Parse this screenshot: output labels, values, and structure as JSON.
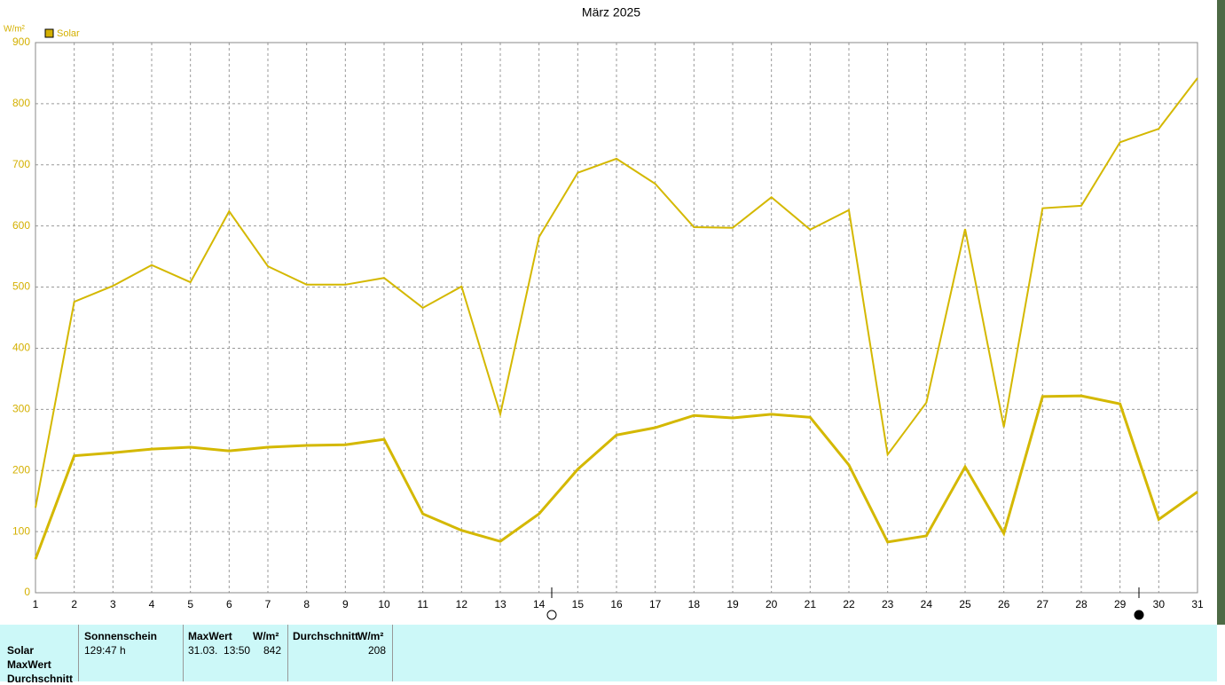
{
  "chart_data": {
    "type": "line",
    "title": "März 2025",
    "y_unit": "W/m²",
    "legend": "Solar",
    "legend_color": "#d4b000",
    "x": [
      1,
      2,
      3,
      4,
      5,
      6,
      7,
      8,
      9,
      10,
      11,
      12,
      13,
      14,
      15,
      16,
      17,
      18,
      19,
      20,
      21,
      22,
      23,
      24,
      25,
      26,
      27,
      28,
      29,
      30,
      31
    ],
    "xlim": [
      1,
      31
    ],
    "xticks": [
      1,
      2,
      3,
      4,
      5,
      6,
      7,
      8,
      9,
      10,
      11,
      12,
      13,
      14,
      15,
      16,
      17,
      18,
      19,
      20,
      21,
      22,
      23,
      24,
      25,
      26,
      27,
      28,
      29,
      30,
      31
    ],
    "ylim": [
      0,
      900
    ],
    "yticks": [
      0,
      100,
      200,
      300,
      400,
      500,
      600,
      700,
      800,
      900
    ],
    "grid": true,
    "series": [
      {
        "color": "#d4b800",
        "values": [
          139,
          476,
          502,
          536,
          508,
          624,
          534,
          504,
          504,
          515,
          466,
          501,
          292,
          582,
          687,
          710,
          669,
          598,
          597,
          647,
          594,
          626,
          226,
          311,
          595,
          271,
          629,
          633,
          737,
          759,
          842
        ]
      },
      {
        "color": "#d4b800",
        "values": [
          55,
          224,
          229,
          235,
          238,
          232,
          238,
          241,
          242,
          251,
          129,
          102,
          84,
          129,
          202,
          258,
          270,
          290,
          286,
          292,
          287,
          209,
          83,
          93,
          206,
          97,
          321,
          322,
          309,
          120,
          165
        ]
      }
    ]
  },
  "table": {
    "headers": [
      "Sonnenschein",
      "MaxWert",
      "W/m²",
      "Durchschnitt",
      "W/m²"
    ],
    "row_labels": [
      "Solar",
      "MaxWert",
      "Durchschnitt"
    ],
    "solar_row": [
      "129:47 h",
      "31.03.  13:50",
      "842",
      "208"
    ]
  }
}
